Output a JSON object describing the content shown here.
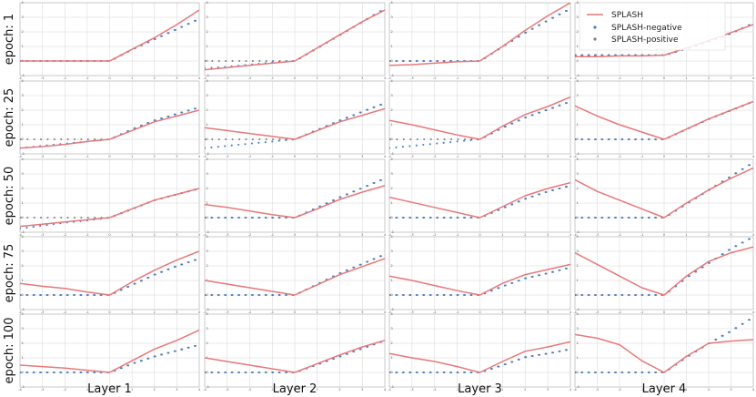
{
  "colors": {
    "splash": "#e8787a",
    "negative": "#3b7fd4",
    "positive": "#7a7f88",
    "grid": "#d6d6d6",
    "frame": "#bbbbbb"
  },
  "legend": {
    "position": "top-right",
    "items": [
      {
        "label": "SPLASH",
        "kind": "line",
        "color": "#e8787a"
      },
      {
        "label": "SPLASH-negative",
        "kind": "dots",
        "color": "#3b7fd4"
      },
      {
        "label": "SPLASH-positive",
        "kind": "dots",
        "color": "#7a7f88"
      }
    ]
  },
  "chart_data": {
    "type": "line",
    "layout": "grid 5 rows x 4 columns of small line plots",
    "grid": true,
    "xlim": [
      -4,
      4
    ],
    "ylim": [
      -1,
      4
    ],
    "row_labels": [
      "epoch: 1",
      "epoch: 25",
      "epoch: 50",
      "epoch: 75",
      "epoch: 100"
    ],
    "col_labels": [
      "Layer 1",
      "Layer 2",
      "Layer 3",
      "Layer 4"
    ],
    "x_ticks": [
      -4,
      -3,
      -2,
      -1,
      0,
      1,
      2,
      3,
      4
    ],
    "y_ticks": [
      -1,
      0,
      1,
      2,
      3,
      4
    ],
    "x": [
      -4,
      -3,
      -2,
      -1,
      0,
      1,
      2,
      3,
      4
    ],
    "panels": [
      [
        {
          "SPLASH": [
            0,
            0,
            0,
            0,
            0,
            0.8,
            1.6,
            2.5,
            3.5
          ],
          "SPLASH-negative": [
            0,
            0,
            0,
            0,
            0,
            0.8,
            1.5,
            2.2,
            2.9
          ],
          "SPLASH-positive": [
            0,
            0,
            0,
            0,
            0,
            0.8,
            1.5,
            2.2,
            2.9
          ]
        },
        {
          "SPLASH": [
            -0.6,
            -0.5,
            -0.35,
            -0.15,
            0,
            0.6,
            1.2,
            1.6,
            2.0
          ],
          "SPLASH-negative": [
            -0.6,
            -0.45,
            -0.3,
            -0.15,
            0,
            0.7,
            1.3,
            1.75,
            2.2
          ],
          "SPLASH-positive": [
            0,
            0,
            0,
            0,
            0,
            0.7,
            1.3,
            1.75,
            2.2
          ]
        },
        {
          "SPLASH": [
            -0.6,
            -0.45,
            -0.3,
            -0.15,
            0,
            0.6,
            1.2,
            1.6,
            2.0
          ],
          "SPLASH-negative": [
            -0.75,
            -0.55,
            -0.35,
            -0.2,
            0,
            0.6,
            1.2,
            1.6,
            2.0
          ],
          "SPLASH-positive": [
            0,
            0,
            0,
            0,
            0,
            0.6,
            1.2,
            1.6,
            2.0
          ]
        },
        {
          "SPLASH": [
            0.8,
            0.6,
            0.45,
            0.2,
            0,
            0.9,
            1.7,
            2.4,
            3.0
          ],
          "SPLASH-negative": [
            0,
            0,
            0,
            0,
            0,
            0.7,
            1.4,
            2.0,
            2.5
          ],
          "SPLASH-positive": [
            0,
            0,
            0,
            0,
            0,
            0.7,
            1.4,
            2.0,
            2.5
          ]
        },
        {
          "SPLASH": [
            0.5,
            0.4,
            0.3,
            0.15,
            0,
            0.8,
            1.6,
            2.2,
            2.9
          ],
          "SPLASH-negative": [
            0,
            0,
            0,
            0,
            0,
            0.6,
            1.1,
            1.5,
            1.9
          ],
          "SPLASH-positive": [
            0,
            0,
            0,
            0,
            0,
            0.6,
            1.1,
            1.5,
            1.9
          ]
        }
      ],
      [
        {
          "SPLASH": [
            -0.6,
            -0.45,
            -0.3,
            -0.15,
            0,
            0.9,
            1.8,
            2.7,
            3.5
          ],
          "SPLASH-negative": [
            -0.5,
            -0.4,
            -0.25,
            -0.1,
            0,
            0.9,
            1.8,
            2.7,
            3.6
          ],
          "SPLASH-positive": [
            0,
            0,
            0,
            0,
            0,
            0.9,
            1.8,
            2.7,
            3.6
          ]
        },
        {
          "SPLASH": [
            0.8,
            0.6,
            0.4,
            0.2,
            0,
            0.6,
            1.2,
            1.65,
            2.1
          ],
          "SPLASH-negative": [
            -0.6,
            -0.45,
            -0.3,
            -0.15,
            0,
            0.65,
            1.3,
            1.9,
            2.5
          ],
          "SPLASH-positive": [
            0,
            0,
            0,
            0,
            0,
            0.65,
            1.3,
            1.9,
            2.5
          ]
        },
        {
          "SPLASH": [
            0.9,
            0.7,
            0.45,
            0.2,
            0,
            0.6,
            1.25,
            1.75,
            2.2
          ],
          "SPLASH-negative": [
            0,
            0,
            0,
            0,
            0,
            0.7,
            1.4,
            2.05,
            2.7
          ],
          "SPLASH-positive": [
            0,
            0,
            0,
            0,
            0,
            0.7,
            1.4,
            2.05,
            2.7
          ]
        },
        {
          "SPLASH": [
            1.0,
            0.75,
            0.5,
            0.25,
            0,
            0.7,
            1.4,
            1.95,
            2.5
          ],
          "SPLASH-negative": [
            0,
            0,
            0,
            0,
            0,
            0.75,
            1.5,
            2.15,
            2.8
          ],
          "SPLASH-positive": [
            0,
            0,
            0,
            0,
            0,
            0.75,
            1.5,
            2.15,
            2.8
          ]
        },
        {
          "SPLASH": [
            1.0,
            0.75,
            0.5,
            0.25,
            0,
            0.6,
            1.2,
            1.75,
            2.2
          ],
          "SPLASH-negative": [
            0,
            0,
            0,
            0,
            0,
            0.55,
            1.1,
            1.65,
            2.2
          ],
          "SPLASH-positive": [
            0,
            0,
            0,
            0,
            0,
            0.55,
            1.1,
            1.65,
            2.2
          ]
        }
      ],
      [
        {
          "SPLASH": [
            -0.3,
            -0.25,
            -0.15,
            -0.05,
            0,
            1.0,
            2.1,
            3.1,
            4.0
          ],
          "SPLASH-negative": [
            0,
            0,
            0,
            0,
            0,
            1.0,
            1.95,
            2.8,
            3.6
          ],
          "SPLASH-positive": [
            0,
            0,
            0,
            0,
            0,
            1.0,
            1.95,
            2.8,
            3.6
          ]
        },
        {
          "SPLASH": [
            1.3,
            1.0,
            0.65,
            0.3,
            0,
            0.9,
            1.7,
            2.25,
            2.9
          ],
          "SPLASH-negative": [
            -0.6,
            -0.45,
            -0.3,
            -0.15,
            0,
            0.8,
            1.5,
            2.05,
            2.6
          ],
          "SPLASH-positive": [
            0,
            0,
            0,
            0,
            0,
            0.8,
            1.5,
            2.05,
            2.6
          ]
        },
        {
          "SPLASH": [
            1.4,
            1.05,
            0.7,
            0.35,
            0,
            0.75,
            1.5,
            2.0,
            2.4
          ],
          "SPLASH-negative": [
            0,
            0,
            0,
            0,
            0,
            0.65,
            1.3,
            1.8,
            2.2
          ],
          "SPLASH-positive": [
            0,
            0,
            0,
            0,
            0,
            0.65,
            1.3,
            1.8,
            2.2
          ]
        },
        {
          "SPLASH": [
            1.3,
            1.0,
            0.65,
            0.3,
            0,
            0.8,
            1.4,
            1.75,
            2.1
          ],
          "SPLASH-negative": [
            0,
            0,
            0,
            0,
            0,
            0.6,
            1.15,
            1.5,
            1.9
          ],
          "SPLASH-positive": [
            0,
            0,
            0,
            0,
            0,
            0.6,
            1.15,
            1.5,
            1.9
          ]
        },
        {
          "SPLASH": [
            1.3,
            1.0,
            0.75,
            0.4,
            0,
            0.75,
            1.45,
            1.75,
            2.1
          ],
          "SPLASH-negative": [
            0,
            0,
            0,
            0,
            0,
            0.5,
            1.05,
            1.3,
            1.6
          ],
          "SPLASH-positive": [
            0,
            0,
            0,
            0,
            0,
            0.5,
            1.05,
            1.3,
            1.6
          ]
        }
      ],
      [
        {
          "SPLASH": [
            0.3,
            0.3,
            0.35,
            0.35,
            0.4,
            0.9,
            1.4,
            1.95,
            2.5
          ],
          "SPLASH-negative": [
            0.4,
            0.4,
            0.4,
            0.4,
            0.4,
            0.85,
            1.35,
            1.9,
            2.6
          ],
          "SPLASH-positive": [
            0.4,
            0.4,
            0.4,
            0.4,
            0.4,
            0.85,
            1.35,
            1.9,
            2.6
          ]
        },
        {
          "SPLASH": [
            2.3,
            1.6,
            1.0,
            0.5,
            0,
            0.7,
            1.4,
            2.0,
            2.6
          ],
          "SPLASH-negative": [
            0,
            0,
            0,
            0,
            0,
            0.7,
            1.4,
            2.0,
            2.6
          ],
          "SPLASH-positive": [
            0,
            0,
            0,
            0,
            0,
            0.7,
            1.4,
            2.0,
            2.6
          ]
        },
        {
          "SPLASH": [
            2.6,
            1.8,
            1.2,
            0.6,
            0,
            1.0,
            1.9,
            2.7,
            3.4
          ],
          "SPLASH-negative": [
            0,
            0,
            0,
            0,
            0,
            0.95,
            1.9,
            2.85,
            3.8
          ],
          "SPLASH-positive": [
            0,
            0,
            0,
            0,
            0,
            0.95,
            1.9,
            2.85,
            3.8
          ]
        },
        {
          "SPLASH": [
            2.9,
            2.1,
            1.3,
            0.5,
            0,
            1.3,
            2.3,
            2.9,
            3.3
          ],
          "SPLASH-negative": [
            0,
            0,
            0,
            0,
            0,
            1.2,
            2.2,
            3.2,
            4.0
          ],
          "SPLASH-positive": [
            0,
            0,
            0,
            0,
            0,
            1.2,
            2.2,
            3.2,
            4.0
          ]
        },
        {
          "SPLASH": [
            2.6,
            2.35,
            1.9,
            0.8,
            0,
            1.1,
            2.0,
            2.15,
            2.25
          ],
          "SPLASH-negative": [
            0,
            0,
            0,
            0,
            0,
            1.05,
            2.0,
            2.85,
            3.8
          ],
          "SPLASH-positive": [
            0,
            0,
            0,
            0,
            0,
            1.05,
            2.0,
            2.85,
            3.8
          ]
        }
      ]
    ]
  }
}
